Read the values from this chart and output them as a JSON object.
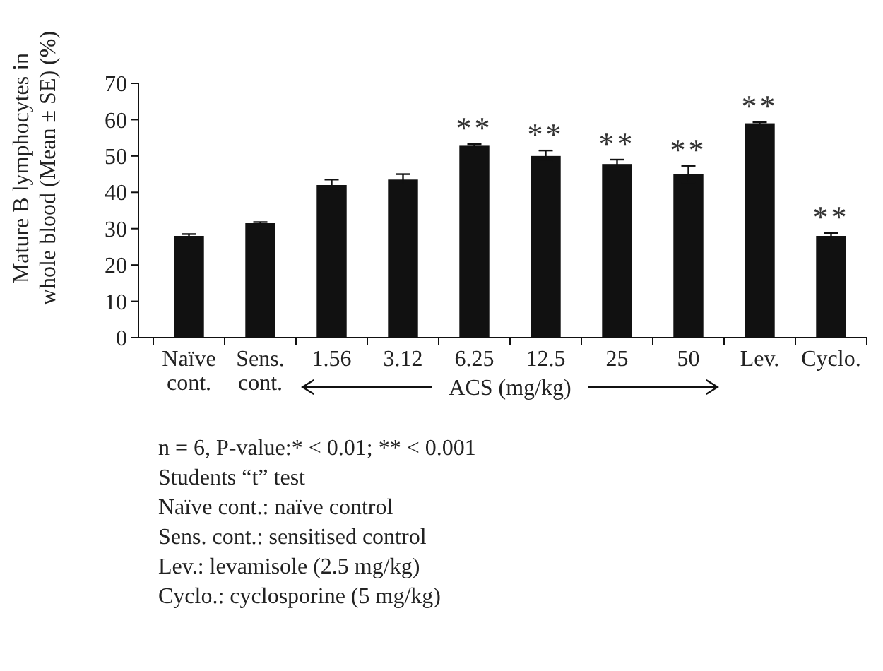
{
  "chart_data": {
    "type": "bar",
    "ylabel": "Mature B lymphocytes in whole blood (Mean ± SE) (%)",
    "xlabel": "ACS (mg/kg)",
    "categories": [
      "Naïve cont.",
      "Sens. cont.",
      "1.56",
      "3.12",
      "6.25",
      "12.5",
      "25",
      "50",
      "Lev.",
      "Cyclo."
    ],
    "values": [
      28,
      31.5,
      42,
      43.5,
      53,
      50,
      47.8,
      45,
      59,
      28
    ],
    "errors": [
      0.5,
      0.3,
      1.5,
      1.5,
      0.3,
      1.5,
      1.2,
      2.3,
      0.3,
      0.8
    ],
    "color": "#111111",
    "ylim": [
      0,
      70
    ],
    "yticks": [
      0,
      10,
      20,
      30,
      40,
      50,
      60,
      70
    ],
    "grid": false,
    "annotations": [
      {
        "text": "**",
        "x": "6.25",
        "y": 53.3
      },
      {
        "text": "**",
        "x": "12.5",
        "y": 51.5
      },
      {
        "text": "**",
        "x": "25",
        "y": 49
      },
      {
        "text": "**",
        "x": "50",
        "y": 47.3
      },
      {
        "text": "**",
        "x": "Lev.",
        "y": 59.3
      },
      {
        "text": "**",
        "x": "Cyclo.",
        "y": 28.8
      },
      "n = 6, P-value:* < 0.01; ** < 0.001",
      "Students “t” test",
      "Naïve cont.: naïve control",
      "Sens. cont.: sensitised control",
      "Lev.: levamisole (2.5 mg/kg)",
      "Cyclo.: cyclosporine (5 mg/kg)"
    ]
  }
}
